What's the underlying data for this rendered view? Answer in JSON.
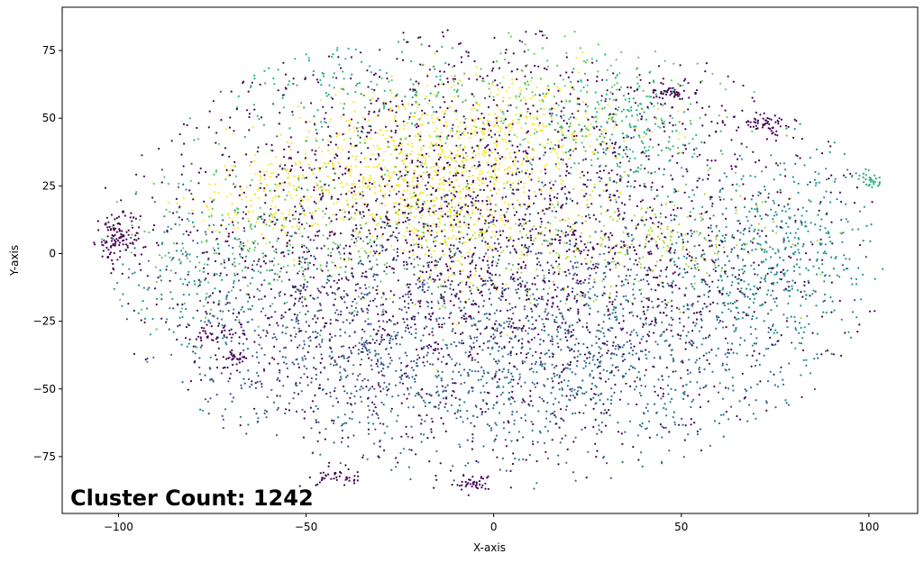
{
  "chart_data": {
    "type": "scatter",
    "title": "",
    "xlabel": "X-axis",
    "ylabel": "Y-axis",
    "xlim": [
      -115,
      113
    ],
    "ylim": [
      -96,
      91
    ],
    "xticks": [
      -100,
      -50,
      0,
      50,
      100
    ],
    "xtick_labels": [
      "−100",
      "−50",
      "0",
      "50",
      "100"
    ],
    "yticks": [
      -75,
      -50,
      -25,
      0,
      25,
      50,
      75
    ],
    "ytick_labels": [
      "−75",
      "−50",
      "−25",
      "0",
      "25",
      "50",
      "75"
    ],
    "grid": false,
    "legend": "none",
    "annotation": "Cluster Count: 1242",
    "palette": "viridis",
    "series_colors": [
      "#440154",
      "#3b528b",
      "#2c728e",
      "#21918c",
      "#28ae80",
      "#5ec962",
      "#addc30",
      "#fde725"
    ],
    "clusters": [
      {
        "x": -25,
        "y": 30,
        "sx": 18,
        "sy": 14,
        "color": "#fde725",
        "n": 500
      },
      {
        "x": -10,
        "y": 15,
        "sx": 10,
        "sy": 15,
        "color": "#fde725",
        "n": 250
      },
      {
        "x": 5,
        "y": 45,
        "sx": 20,
        "sy": 12,
        "color": "#fde725",
        "n": 300
      },
      {
        "x": -60,
        "y": 20,
        "sx": 10,
        "sy": 8,
        "color": "#fde725",
        "n": 120
      },
      {
        "x": 30,
        "y": 5,
        "sx": 25,
        "sy": 10,
        "color": "#addc30",
        "n": 300
      },
      {
        "x": -50,
        "y": 5,
        "sx": 25,
        "sy": 15,
        "color": "#5ec962",
        "n": 350
      },
      {
        "x": 20,
        "y": 55,
        "sx": 25,
        "sy": 15,
        "color": "#5ec962",
        "n": 250
      },
      {
        "x": 35,
        "y": 45,
        "sx": 12,
        "sy": 12,
        "color": "#28ae80",
        "n": 200
      },
      {
        "x": 75,
        "y": 0,
        "sx": 18,
        "sy": 18,
        "color": "#21918c",
        "n": 500
      },
      {
        "x": -40,
        "y": 60,
        "sx": 20,
        "sy": 10,
        "color": "#28ae80",
        "n": 150
      },
      {
        "x": -80,
        "y": -10,
        "sx": 12,
        "sy": 14,
        "color": "#21918c",
        "n": 150
      },
      {
        "x": 10,
        "y": -50,
        "sx": 35,
        "sy": 15,
        "color": "#2c728e",
        "n": 600
      },
      {
        "x": 30,
        "y": -25,
        "sx": 25,
        "sy": 15,
        "color": "#2c728e",
        "n": 400
      },
      {
        "x": -45,
        "y": -30,
        "sx": 20,
        "sy": 20,
        "color": "#3b528b",
        "n": 500
      },
      {
        "x": 0,
        "y": -10,
        "sx": 40,
        "sy": 30,
        "color": "#3b528b",
        "n": 700
      },
      {
        "x": 0,
        "y": 5,
        "sx": 48,
        "sy": 42,
        "color": "#440154",
        "n": 2400
      },
      {
        "x": -100,
        "y": 5,
        "sx": 3,
        "sy": 5,
        "color": "#440154",
        "n": 120
      },
      {
        "x": 72,
        "y": 48,
        "sx": 4,
        "sy": 2,
        "color": "#440154",
        "n": 60
      },
      {
        "x": 47,
        "y": 59,
        "sx": 3,
        "sy": 1,
        "color": "#440154",
        "n": 40
      },
      {
        "x": -5,
        "y": -85,
        "sx": 3,
        "sy": 1.5,
        "color": "#440154",
        "n": 40
      },
      {
        "x": -40,
        "y": -83,
        "sx": 4,
        "sy": 1.5,
        "color": "#440154",
        "n": 40
      },
      {
        "x": 100,
        "y": 27,
        "sx": 2,
        "sy": 1.5,
        "color": "#28ae80",
        "n": 30
      },
      {
        "x": -72,
        "y": -30,
        "sx": 4,
        "sy": 2,
        "color": "#440154",
        "n": 40
      },
      {
        "x": -70,
        "y": -40,
        "sx": 2,
        "sy": 2,
        "color": "#440154",
        "n": 30
      }
    ]
  }
}
